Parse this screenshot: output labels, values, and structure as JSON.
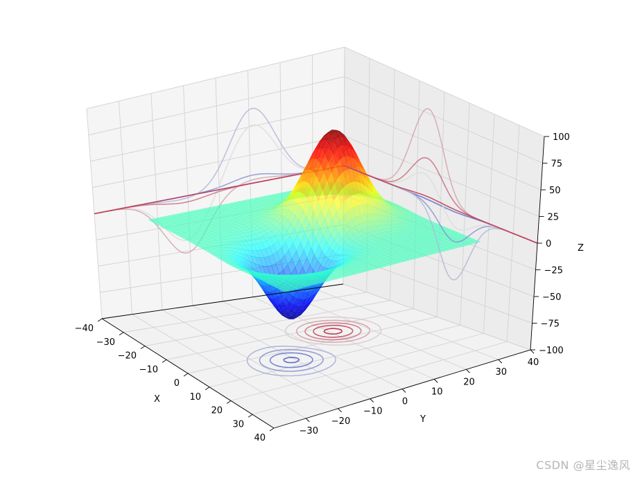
{
  "watermark": "CSDN @星尘逸风",
  "chart_data": {
    "type": "surface3d",
    "title": "",
    "xlabel": "X",
    "ylabel": "Y",
    "zlabel": "Z",
    "xlim": [
      -40,
      40
    ],
    "ylim": [
      -40,
      40
    ],
    "zlim": [
      -100,
      100
    ],
    "xticks": [
      -40,
      -30,
      -20,
      -10,
      0,
      10,
      20,
      30,
      40
    ],
    "yticks": [
      -30,
      -20,
      -10,
      0,
      10,
      20,
      30,
      40
    ],
    "zticks": [
      -100,
      -75,
      -50,
      -25,
      0,
      25,
      50,
      75,
      100
    ],
    "colormap": "jet",
    "surface": {
      "peak": {
        "x": -6,
        "y": 11,
        "z": 80
      },
      "trough": {
        "x": 6,
        "y": -11,
        "z": -63
      }
    },
    "projection_offsets": {
      "z_floor": -100,
      "x_wall": -40,
      "y_wall": 40
    },
    "colors": {
      "pane": "#f2f2f2",
      "grid": "#d2d2d2",
      "axis": "#000000"
    }
  }
}
